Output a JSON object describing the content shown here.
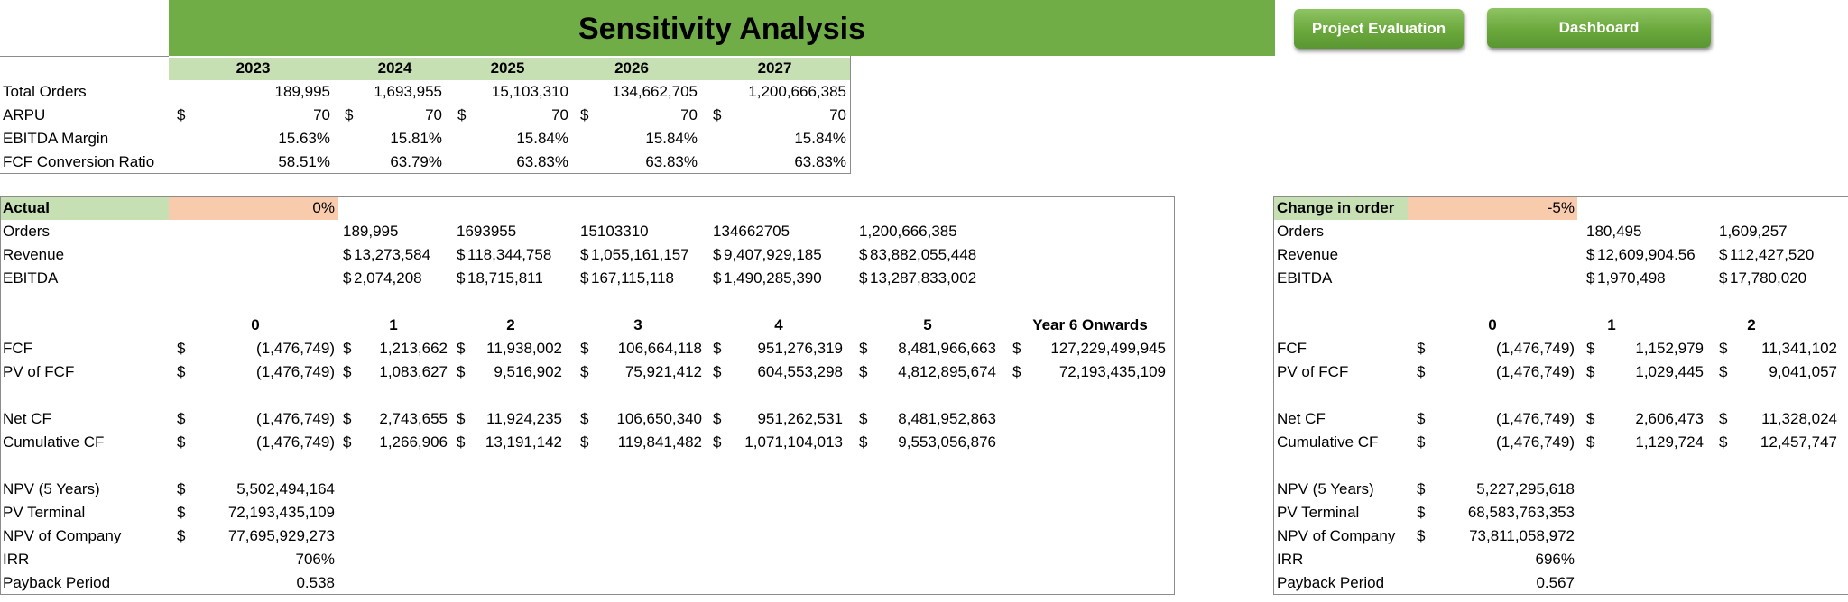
{
  "title": "Sensitivity Analysis",
  "buttons": {
    "project_evaluation": "Project Evaluation",
    "dashboard": "Dashboard"
  },
  "top_table": {
    "years": [
      "2023",
      "2024",
      "2025",
      "2026",
      "2027"
    ],
    "rows": [
      {
        "label": "Total Orders",
        "currency": false,
        "values": [
          "189,995",
          "1,693,955",
          "15,103,310",
          "134,662,705",
          "1,200,666,385"
        ]
      },
      {
        "label": "ARPU",
        "currency": true,
        "values": [
          "70",
          "70",
          "70",
          "70",
          "70"
        ]
      },
      {
        "label": "EBITDA Margin",
        "currency": false,
        "values": [
          "15.63%",
          "15.81%",
          "15.84%",
          "15.84%",
          "15.84%"
        ]
      },
      {
        "label": "FCF Conversion Ratio",
        "currency": false,
        "values": [
          "58.51%",
          "63.79%",
          "63.83%",
          "63.83%",
          "63.83%"
        ]
      }
    ]
  },
  "currency_symbol": "$",
  "left_panel": {
    "header_label": "Actual",
    "header_value": "0%",
    "orders_label": "Orders",
    "orders": [
      "189,995",
      "1693955",
      "15103310",
      "134662705",
      "1,200,666,385"
    ],
    "revenue_label": "Revenue",
    "revenue": [
      "13,273,584",
      "118,344,758",
      "1,055,161,157",
      "9,407,929,185",
      "83,882,055,448"
    ],
    "ebitda_label": "EBITDA",
    "ebitda": [
      "2,074,208",
      "18,715,811",
      "167,115,118",
      "1,490,285,390",
      "13,287,833,002"
    ],
    "periods": [
      "0",
      "1",
      "2",
      "3",
      "4",
      "5",
      "Year 6 Onwards"
    ],
    "fcf_label": "FCF",
    "fcf": [
      "(1,476,749)",
      "1,213,662",
      "11,938,002",
      "106,664,118",
      "951,276,319",
      "8,481,966,663",
      "127,229,499,945"
    ],
    "pv_fcf_label": "PV of FCF",
    "pv_fcf": [
      "(1,476,749)",
      "1,083,627",
      "9,516,902",
      "75,921,412",
      "604,553,298",
      "4,812,895,674",
      "72,193,435,109"
    ],
    "net_cf_label": "Net CF",
    "net_cf": [
      "(1,476,749)",
      "2,743,655",
      "11,924,235",
      "106,650,340",
      "951,262,531",
      "8,481,952,863"
    ],
    "cum_cf_label": "Cumulative CF",
    "cum_cf": [
      "(1,476,749)",
      "1,266,906",
      "13,191,142",
      "119,841,482",
      "1,071,104,013",
      "9,553,056,876"
    ],
    "npv5_label": "NPV (5 Years)",
    "npv5": "5,502,494,164",
    "pv_terminal_label": "PV Terminal",
    "pv_terminal": "72,193,435,109",
    "npv_company_label": "NPV of Company",
    "npv_company": "77,695,929,273",
    "irr_label": "IRR",
    "irr": "706%",
    "payback_label": "Payback Period",
    "payback": "0.538"
  },
  "right_panel": {
    "header_label": "Change in order",
    "header_value": "-5%",
    "orders_label": "Orders",
    "orders": [
      "180,495",
      "1,609,257"
    ],
    "revenue_label": "Revenue",
    "revenue": [
      "12,609,904.56",
      "112,427,520"
    ],
    "ebitda_label": "EBITDA",
    "ebitda": [
      "1,970,498",
      "17,780,020"
    ],
    "periods": [
      "0",
      "1",
      "2"
    ],
    "fcf_label": "FCF",
    "fcf": [
      "(1,476,749)",
      "1,152,979",
      "11,341,102"
    ],
    "pv_fcf_label": "PV of FCF",
    "pv_fcf": [
      "(1,476,749)",
      "1,029,445",
      "9,041,057"
    ],
    "net_cf_label": "Net CF",
    "net_cf": [
      "(1,476,749)",
      "2,606,473",
      "11,328,024"
    ],
    "cum_cf_label": "Cumulative CF",
    "cum_cf": [
      "(1,476,749)",
      "1,129,724",
      "12,457,747"
    ],
    "npv5_label": "NPV (5 Years)",
    "npv5": "5,227,295,618",
    "pv_terminal_label": "PV Terminal",
    "pv_terminal": "68,583,763,353",
    "npv_company_label": "NPV of Company",
    "npv_company": "73,811,058,972",
    "irr_label": "IRR",
    "irr": "696%",
    "payback_label": "Payback Period",
    "payback": "0.567"
  }
}
